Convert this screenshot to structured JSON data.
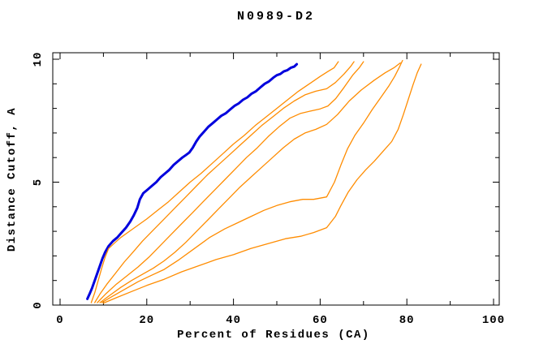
{
  "chart_data": {
    "type": "line",
    "title": "N0989-D2",
    "xlabel": "Percent of Residues (CA)",
    "ylabel": "Distance Cutoff, A",
    "xlim": [
      0,
      100
    ],
    "ylim": [
      0,
      10
    ],
    "grid": false,
    "legend": "none",
    "frame_box": true,
    "axis_color": "#000000",
    "background_color": "#ffffff",
    "x_major_ticks": [
      0,
      20,
      40,
      60,
      80,
      100
    ],
    "x_minor_ticks": [
      10,
      30,
      50,
      70,
      90
    ],
    "y_major_ticks": [
      0,
      5,
      10
    ],
    "y_minor_ticks": [
      1,
      2,
      3,
      4,
      6,
      7,
      8,
      9
    ],
    "x_tick_labels": [
      "0",
      "20",
      "40",
      "60",
      "80",
      "100"
    ],
    "y_tick_labels": [
      "0",
      "5",
      "10"
    ],
    "series": [
      {
        "name": "blue-model-curve",
        "color": "#0000dd",
        "width": 3,
        "points": [
          [
            6.3,
            0.25
          ],
          [
            6.8,
            0.45
          ],
          [
            7.4,
            0.7
          ],
          [
            8,
            1.0
          ],
          [
            8.6,
            1.3
          ],
          [
            9.2,
            1.6
          ],
          [
            9.8,
            1.9
          ],
          [
            10.4,
            2.15
          ],
          [
            11.2,
            2.4
          ],
          [
            12.2,
            2.6
          ],
          [
            13.2,
            2.75
          ],
          [
            14.2,
            2.95
          ],
          [
            15.2,
            3.15
          ],
          [
            16.2,
            3.4
          ],
          [
            17,
            3.65
          ],
          [
            17.8,
            3.95
          ],
          [
            18.4,
            4.3
          ],
          [
            19.2,
            4.55
          ],
          [
            20.2,
            4.7
          ],
          [
            21.2,
            4.85
          ],
          [
            22.2,
            5.0
          ],
          [
            23.2,
            5.2
          ],
          [
            24.2,
            5.35
          ],
          [
            25.2,
            5.5
          ],
          [
            26.2,
            5.7
          ],
          [
            27.2,
            5.85
          ],
          [
            28.2,
            6.0
          ],
          [
            29,
            6.1
          ],
          [
            29.8,
            6.2
          ],
          [
            30.6,
            6.4
          ],
          [
            31.4,
            6.65
          ],
          [
            32.2,
            6.85
          ],
          [
            33.2,
            7.05
          ],
          [
            34.2,
            7.25
          ],
          [
            35.2,
            7.4
          ],
          [
            36.2,
            7.55
          ],
          [
            37.2,
            7.7
          ],
          [
            38.2,
            7.8
          ],
          [
            39.2,
            7.95
          ],
          [
            40.2,
            8.1
          ],
          [
            41.2,
            8.2
          ],
          [
            42.2,
            8.35
          ],
          [
            43.2,
            8.45
          ],
          [
            44.2,
            8.6
          ],
          [
            45.2,
            8.7
          ],
          [
            46.2,
            8.85
          ],
          [
            47.2,
            9.0
          ],
          [
            48.2,
            9.1
          ],
          [
            49.2,
            9.25
          ],
          [
            50,
            9.35
          ],
          [
            50.8,
            9.4
          ],
          [
            51.6,
            9.5
          ],
          [
            52.4,
            9.55
          ],
          [
            53.2,
            9.65
          ],
          [
            54,
            9.7
          ],
          [
            54.6,
            9.8
          ]
        ]
      },
      {
        "name": "orange-curve-1",
        "color": "#ff8c00",
        "width": 1.3,
        "points": [
          [
            7.2,
            0.1
          ],
          [
            8,
            0.5
          ],
          [
            8.8,
            1.0
          ],
          [
            9.6,
            1.5
          ],
          [
            10.4,
            1.95
          ],
          [
            11.2,
            2.3
          ],
          [
            12.4,
            2.5
          ],
          [
            14,
            2.75
          ],
          [
            16,
            3.0
          ],
          [
            18,
            3.25
          ],
          [
            20,
            3.5
          ],
          [
            22.5,
            3.85
          ],
          [
            25,
            4.2
          ],
          [
            27.5,
            4.6
          ],
          [
            30,
            5.0
          ],
          [
            32.5,
            5.35
          ],
          [
            35,
            5.75
          ],
          [
            37.5,
            6.15
          ],
          [
            40,
            6.55
          ],
          [
            42.5,
            6.9
          ],
          [
            45,
            7.3
          ],
          [
            47.5,
            7.65
          ],
          [
            50,
            8.0
          ],
          [
            52.5,
            8.35
          ],
          [
            55,
            8.7
          ],
          [
            57.5,
            9.0
          ],
          [
            60,
            9.3
          ],
          [
            61.8,
            9.5
          ],
          [
            63.2,
            9.65
          ],
          [
            64.2,
            9.9
          ]
        ]
      },
      {
        "name": "orange-curve-2",
        "color": "#ff8c00",
        "width": 1.3,
        "points": [
          [
            8,
            0.1
          ],
          [
            9.2,
            0.45
          ],
          [
            10.8,
            0.85
          ],
          [
            12.8,
            1.3
          ],
          [
            14.8,
            1.75
          ],
          [
            16.8,
            2.15
          ],
          [
            19,
            2.6
          ],
          [
            21.5,
            3.05
          ],
          [
            24,
            3.5
          ],
          [
            26.5,
            3.95
          ],
          [
            29,
            4.4
          ],
          [
            31.5,
            4.85
          ],
          [
            34,
            5.3
          ],
          [
            36.5,
            5.7
          ],
          [
            39,
            6.1
          ],
          [
            41.5,
            6.5
          ],
          [
            44,
            6.9
          ],
          [
            46.5,
            7.3
          ],
          [
            49,
            7.65
          ],
          [
            51.5,
            8.0
          ],
          [
            54,
            8.3
          ],
          [
            56.5,
            8.55
          ],
          [
            59,
            8.7
          ],
          [
            61.5,
            8.8
          ],
          [
            63.5,
            9.05
          ],
          [
            65.5,
            9.4
          ],
          [
            67,
            9.7
          ],
          [
            67.8,
            9.9
          ]
        ]
      },
      {
        "name": "orange-curve-3",
        "color": "#ff8c00",
        "width": 1.3,
        "points": [
          [
            8.6,
            0.1
          ],
          [
            10.5,
            0.45
          ],
          [
            13,
            0.85
          ],
          [
            15.5,
            1.2
          ],
          [
            18,
            1.55
          ],
          [
            20.5,
            1.95
          ],
          [
            23,
            2.4
          ],
          [
            25.5,
            2.85
          ],
          [
            28,
            3.3
          ],
          [
            30.5,
            3.75
          ],
          [
            33,
            4.2
          ],
          [
            35.5,
            4.65
          ],
          [
            38,
            5.1
          ],
          [
            40.5,
            5.55
          ],
          [
            43,
            6.0
          ],
          [
            45.5,
            6.4
          ],
          [
            48,
            6.85
          ],
          [
            50.5,
            7.25
          ],
          [
            53,
            7.6
          ],
          [
            55.5,
            7.8
          ],
          [
            58,
            7.9
          ],
          [
            60,
            7.98
          ],
          [
            61.8,
            8.1
          ],
          [
            63.6,
            8.4
          ],
          [
            65.5,
            8.85
          ],
          [
            67.5,
            9.35
          ],
          [
            69,
            9.65
          ],
          [
            70,
            9.9
          ]
        ]
      },
      {
        "name": "orange-curve-4",
        "color": "#ff8c00",
        "width": 1.3,
        "points": [
          [
            9.2,
            0.1
          ],
          [
            11.5,
            0.4
          ],
          [
            14,
            0.72
          ],
          [
            16.5,
            1.0
          ],
          [
            19,
            1.25
          ],
          [
            21.5,
            1.5
          ],
          [
            24,
            1.8
          ],
          [
            26.5,
            2.15
          ],
          [
            29,
            2.55
          ],
          [
            31.5,
            3.0
          ],
          [
            34,
            3.45
          ],
          [
            36.5,
            3.9
          ],
          [
            39,
            4.35
          ],
          [
            41.5,
            4.8
          ],
          [
            44,
            5.2
          ],
          [
            46.5,
            5.6
          ],
          [
            49,
            6.0
          ],
          [
            51.5,
            6.4
          ],
          [
            54,
            6.75
          ],
          [
            56.5,
            7.0
          ],
          [
            59,
            7.15
          ],
          [
            61.5,
            7.35
          ],
          [
            64,
            7.75
          ],
          [
            66.7,
            8.3
          ],
          [
            69.5,
            8.75
          ],
          [
            72.5,
            9.15
          ],
          [
            75,
            9.45
          ],
          [
            77,
            9.65
          ],
          [
            78.5,
            9.85
          ]
        ]
      },
      {
        "name": "orange-curve-5",
        "color": "#ff8c00",
        "width": 1.3,
        "points": [
          [
            9.6,
            0.1
          ],
          [
            12,
            0.35
          ],
          [
            15,
            0.65
          ],
          [
            18,
            0.95
          ],
          [
            21,
            1.2
          ],
          [
            24,
            1.45
          ],
          [
            27.5,
            1.85
          ],
          [
            31,
            2.3
          ],
          [
            34.5,
            2.75
          ],
          [
            38,
            3.1
          ],
          [
            41,
            3.35
          ],
          [
            44,
            3.6
          ],
          [
            47,
            3.85
          ],
          [
            50,
            4.05
          ],
          [
            53,
            4.2
          ],
          [
            56,
            4.3
          ],
          [
            58.5,
            4.3
          ],
          [
            61.5,
            4.4
          ],
          [
            63.3,
            5.0
          ],
          [
            64.8,
            5.7
          ],
          [
            66.3,
            6.35
          ],
          [
            68,
            6.9
          ],
          [
            70,
            7.4
          ],
          [
            72,
            7.95
          ],
          [
            74,
            8.45
          ],
          [
            75.8,
            8.9
          ],
          [
            77.2,
            9.3
          ],
          [
            78.2,
            9.65
          ],
          [
            79,
            9.95
          ]
        ]
      },
      {
        "name": "orange-curve-6",
        "color": "#ff8c00",
        "width": 1.3,
        "points": [
          [
            10,
            0.08
          ],
          [
            13,
            0.3
          ],
          [
            16.5,
            0.55
          ],
          [
            20,
            0.8
          ],
          [
            24,
            1.05
          ],
          [
            28,
            1.35
          ],
          [
            32,
            1.6
          ],
          [
            36,
            1.85
          ],
          [
            40,
            2.05
          ],
          [
            44,
            2.3
          ],
          [
            48,
            2.5
          ],
          [
            52,
            2.7
          ],
          [
            55.5,
            2.8
          ],
          [
            58.5,
            2.95
          ],
          [
            61.5,
            3.15
          ],
          [
            63.5,
            3.6
          ],
          [
            64.8,
            4.05
          ],
          [
            66.5,
            4.6
          ],
          [
            68.5,
            5.1
          ],
          [
            70.5,
            5.5
          ],
          [
            72.5,
            5.85
          ],
          [
            74.5,
            6.25
          ],
          [
            76.5,
            6.65
          ],
          [
            78,
            7.15
          ],
          [
            79.2,
            7.75
          ],
          [
            80.3,
            8.35
          ],
          [
            81.4,
            8.95
          ],
          [
            82.4,
            9.45
          ],
          [
            83.3,
            9.8
          ]
        ]
      }
    ]
  }
}
